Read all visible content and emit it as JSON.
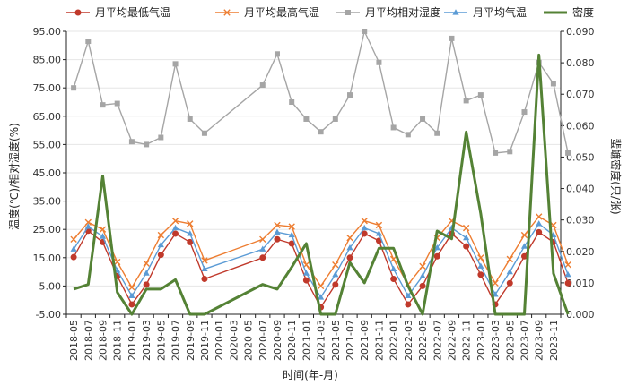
{
  "chart_data": {
    "type": "line",
    "xlabel": "时间(年-月)",
    "ylabel_left": "温度(℃)/相对湿度(%)",
    "ylabel_right": "蜚蠊密度(只/张)",
    "y_left": {
      "min": -5,
      "max": 95,
      "ticks": [
        -5,
        5,
        15,
        25,
        35,
        45,
        55,
        65,
        75,
        85,
        95
      ],
      "tick_labels": [
        "-5.00",
        "5.00",
        "15.00",
        "25.00",
        "35.00",
        "45.00",
        "55.00",
        "65.00",
        "75.00",
        "85.00",
        "95.00"
      ]
    },
    "y_right": {
      "min": 0,
      "max": 0.09,
      "ticks": [
        0,
        0.01,
        0.02,
        0.03,
        0.04,
        0.05,
        0.06,
        0.07,
        0.08,
        0.09
      ],
      "tick_labels": [
        "0.000",
        "0.010",
        "0.020",
        "0.030",
        "0.040",
        "0.050",
        "0.060",
        "0.070",
        "0.080",
        "0.090"
      ]
    },
    "x_labels": [
      "2018-05",
      "2018-07",
      "2018-09",
      "2018-11",
      "2019-01",
      "2019-03",
      "2019-05",
      "2019-07",
      "2019-09",
      "2019-11",
      "2020-01",
      "2020-03",
      "2020-05",
      "2020-07",
      "2020-09",
      "2020-11",
      "2021-01",
      "2021-03",
      "2021-05",
      "2021-07",
      "2021-09",
      "2021-11",
      "2022-01",
      "2022-03",
      "2022-05",
      "2022-07",
      "2022-09",
      "2022-11",
      "2023-01",
      "2023-03",
      "2023-05",
      "2023-07",
      "2023-09",
      "2023-11"
    ],
    "legend_position": "top",
    "series": [
      {
        "name": "月平均最低气温",
        "color": "#c0392b",
        "marker": "circle",
        "axis": "left",
        "points": [
          [
            0,
            15.2
          ],
          [
            1,
            24.5
          ],
          [
            2,
            20.5
          ],
          [
            3,
            8.5
          ],
          [
            4,
            -1.5
          ],
          [
            5,
            5.5
          ],
          [
            6,
            16
          ],
          [
            7,
            23.5
          ],
          [
            8,
            20.5
          ],
          [
            9,
            7.5
          ],
          [
            13,
            15
          ],
          [
            14,
            21.5
          ],
          [
            15,
            20
          ],
          [
            16,
            7
          ],
          [
            17,
            -2.5
          ],
          [
            18,
            5.5
          ],
          [
            19,
            15
          ],
          [
            20,
            23.5
          ],
          [
            21,
            21
          ],
          [
            22,
            7.5
          ],
          [
            23,
            -1.5
          ],
          [
            24,
            5
          ],
          [
            25,
            15.5
          ],
          [
            26,
            23.5
          ],
          [
            27,
            19
          ],
          [
            28,
            9
          ],
          [
            29,
            -1.5
          ],
          [
            30,
            6
          ],
          [
            31,
            15.5
          ],
          [
            32,
            24
          ],
          [
            33,
            20.5
          ],
          [
            34,
            6
          ]
        ]
      },
      {
        "name": "月平均最高气温",
        "color": "#ed7d31",
        "marker": "x",
        "axis": "left",
        "points": [
          [
            0,
            21.5
          ],
          [
            1,
            27.5
          ],
          [
            2,
            25
          ],
          [
            3,
            13.5
          ],
          [
            4,
            4.5
          ],
          [
            5,
            13
          ],
          [
            6,
            23
          ],
          [
            7,
            28
          ],
          [
            8,
            27
          ],
          [
            9,
            14
          ],
          [
            13,
            21.5
          ],
          [
            14,
            26.5
          ],
          [
            15,
            26
          ],
          [
            16,
            12.5
          ],
          [
            17,
            5
          ],
          [
            18,
            12.5
          ],
          [
            19,
            22
          ],
          [
            20,
            28
          ],
          [
            21,
            26.5
          ],
          [
            22,
            14.5
          ],
          [
            23,
            5.5
          ],
          [
            24,
            12
          ],
          [
            25,
            22
          ],
          [
            26,
            28
          ],
          [
            27,
            25.5
          ],
          [
            28,
            15
          ],
          [
            29,
            6
          ],
          [
            30,
            14.5
          ],
          [
            31,
            23
          ],
          [
            32,
            29.5
          ],
          [
            33,
            26.5
          ],
          [
            34,
            12.5
          ]
        ]
      },
      {
        "name": "月平均相对湿度",
        "color": "#a5a5a5",
        "marker": "square",
        "axis": "left",
        "points": [
          [
            0,
            75
          ],
          [
            1,
            91.5
          ],
          [
            2,
            69
          ],
          [
            3,
            69.5
          ],
          [
            4,
            56
          ],
          [
            5,
            55
          ],
          [
            6,
            57.5
          ],
          [
            7,
            83.5
          ],
          [
            8,
            64
          ],
          [
            9,
            59
          ],
          [
            13,
            76
          ],
          [
            14,
            87
          ],
          [
            15,
            70
          ],
          [
            16,
            64
          ],
          [
            17,
            59.5
          ],
          [
            18,
            64
          ],
          [
            19,
            72.5
          ],
          [
            20,
            95
          ],
          [
            21,
            84
          ],
          [
            22,
            61
          ],
          [
            23,
            58.5
          ],
          [
            24,
            64
          ],
          [
            25,
            59
          ],
          [
            26,
            92.5
          ],
          [
            27,
            70.5
          ],
          [
            28,
            72.5
          ],
          [
            29,
            52
          ],
          [
            30,
            52.5
          ],
          [
            31,
            66.5
          ],
          [
            32,
            84
          ],
          [
            33,
            76.5
          ],
          [
            34,
            52
          ]
        ]
      },
      {
        "name": "月平均气温",
        "color": "#5b9bd5",
        "marker": "triangle",
        "axis": "left",
        "points": [
          [
            0,
            18
          ],
          [
            1,
            26
          ],
          [
            2,
            22.5
          ],
          [
            3,
            10.5
          ],
          [
            4,
            1.5
          ],
          [
            5,
            9.5
          ],
          [
            6,
            19.5
          ],
          [
            7,
            25.5
          ],
          [
            8,
            23.5
          ],
          [
            9,
            11
          ],
          [
            13,
            18
          ],
          [
            14,
            24
          ],
          [
            15,
            23
          ],
          [
            16,
            9.5
          ],
          [
            17,
            1
          ],
          [
            18,
            9
          ],
          [
            19,
            18.5
          ],
          [
            20,
            25.5
          ],
          [
            21,
            23.5
          ],
          [
            22,
            11
          ],
          [
            23,
            1.5
          ],
          [
            24,
            8.5
          ],
          [
            25,
            18.5
          ],
          [
            26,
            25.5
          ],
          [
            27,
            22
          ],
          [
            28,
            12
          ],
          [
            29,
            2
          ],
          [
            30,
            10
          ],
          [
            31,
            19
          ],
          [
            32,
            27
          ],
          [
            33,
            23
          ],
          [
            34,
            9
          ]
        ]
      },
      {
        "name": "密度",
        "color": "#548235",
        "marker": "none",
        "axis": "right",
        "points": [
          [
            0,
            0.008
          ],
          [
            1,
            0.0095
          ],
          [
            2,
            0.044
          ],
          [
            3,
            0.007
          ],
          [
            4,
            0
          ],
          [
            5,
            0.008
          ],
          [
            6,
            0.008
          ],
          [
            7,
            0.011
          ],
          [
            8,
            0
          ],
          [
            9,
            0
          ],
          [
            13,
            0.0095
          ],
          [
            14,
            0.008
          ],
          [
            15,
            0.015
          ],
          [
            16,
            0.0225
          ],
          [
            17,
            0
          ],
          [
            18,
            0
          ],
          [
            19,
            0.0165
          ],
          [
            20,
            0.01
          ],
          [
            21,
            0.021
          ],
          [
            22,
            0.021
          ],
          [
            23,
            0.009
          ],
          [
            24,
            0
          ],
          [
            25,
            0.0265
          ],
          [
            26,
            0.024
          ],
          [
            27,
            0.058
          ],
          [
            28,
            0.032
          ],
          [
            29,
            0
          ],
          [
            30,
            0
          ],
          [
            31,
            0
          ],
          [
            32,
            0.0825
          ],
          [
            33,
            0.013
          ],
          [
            34,
            0
          ]
        ]
      }
    ]
  }
}
